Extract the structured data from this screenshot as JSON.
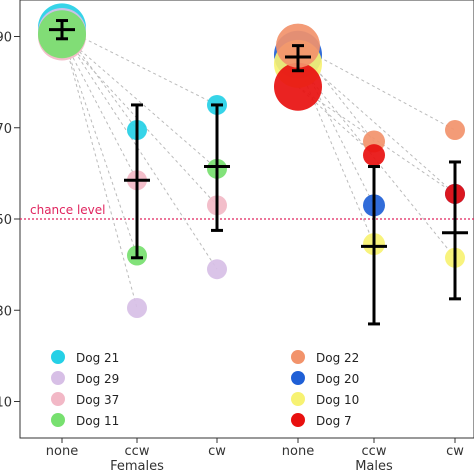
{
  "chart_data": {
    "type": "scatter",
    "x_categories": [
      "none",
      "ccw",
      "cw",
      "none",
      "ccw",
      "cw"
    ],
    "groups": [
      "Females",
      "Males"
    ],
    "y_ticks": [
      "10",
      "30",
      "50",
      "70",
      "90"
    ],
    "ylim": [
      2,
      98
    ],
    "chance_level": {
      "label": "chance level",
      "value": 50,
      "color": "#e0245e"
    },
    "series": [
      {
        "name": "Dog 21",
        "group": "Females",
        "color": "#25d0e6",
        "values": [
          92,
          69.5,
          75
        ]
      },
      {
        "name": "Dog 29",
        "group": "Females",
        "color": "#d7bfe6",
        "values": [
          91,
          30.5,
          39
        ]
      },
      {
        "name": "Dog 37",
        "group": "Females",
        "color": "#f2b8c6",
        "values": [
          90,
          58.5,
          53
        ]
      },
      {
        "name": "Dog 11",
        "group": "Females",
        "color": "#77e06f",
        "values": [
          90.5,
          42,
          61
        ]
      },
      {
        "name": "Dog 22",
        "group": "Males",
        "color": "#f2936b",
        "values": [
          88,
          67,
          69.5
        ]
      },
      {
        "name": "Dog 20",
        "group": "Males",
        "color": "#1f5fd6",
        "values": [
          86,
          53,
          55.5
        ]
      },
      {
        "name": "Dog 10",
        "group": "Males",
        "color": "#f7f272",
        "values": [
          84,
          44.5,
          41.5
        ]
      },
      {
        "name": "Dog 7",
        "group": "Males",
        "color": "#e8100f",
        "values": [
          79,
          64,
          55.5
        ]
      }
    ],
    "point_sizes": [
      [
        24,
        10,
        10
      ],
      [
        24,
        10,
        10
      ],
      [
        24,
        10,
        10
      ],
      [
        24,
        10,
        10
      ],
      [
        22,
        11,
        10
      ],
      [
        24,
        11,
        10
      ],
      [
        24,
        11,
        10
      ],
      [
        24,
        11,
        10
      ]
    ],
    "summary": [
      {
        "x_index": 0,
        "mean": 91.5,
        "low": 89.5,
        "high": 93.5
      },
      {
        "x_index": 1,
        "mean": 58.5,
        "low": 41.5,
        "high": 75
      },
      {
        "x_index": 2,
        "mean": 61.5,
        "low": 47.5,
        "high": 75
      },
      {
        "x_index": 3,
        "mean": 85.5,
        "low": 82.5,
        "high": 88
      },
      {
        "x_index": 4,
        "mean": 44,
        "low": 27,
        "high": 61.5
      },
      {
        "x_index": 5,
        "mean": 47,
        "low": 32.5,
        "high": 62.5
      }
    ],
    "legend": {
      "Females": [
        "Dog 21",
        "Dog 29",
        "Dog 37",
        "Dog 11"
      ],
      "Males": [
        "Dog 22",
        "Dog 20",
        "Dog 10",
        "Dog 7"
      ]
    }
  }
}
